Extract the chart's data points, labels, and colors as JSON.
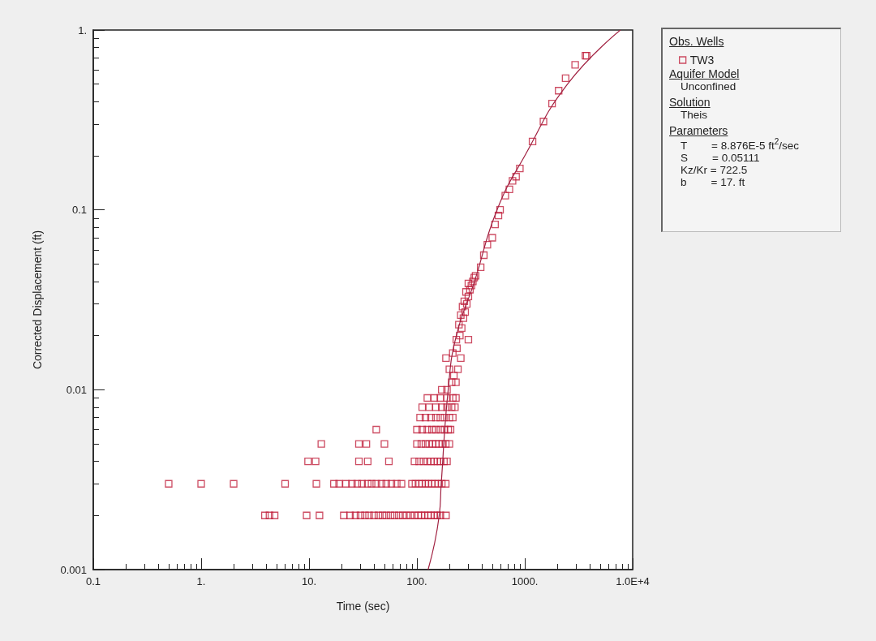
{
  "chart_data": {
    "type": "scatter",
    "xlabel": "Time (sec)",
    "ylabel": "Corrected Displacement (ft)",
    "legend_title": "Obs. Wells",
    "legend": "right",
    "log": "xy",
    "grid": false,
    "marker": "square",
    "xlim": [
      0.1,
      10000
    ],
    "ylim": [
      0.001,
      1
    ],
    "xticks": [
      0.1,
      {
        "value": 1,
        "label": "1."
      },
      {
        "value": 10,
        "label": "10."
      },
      {
        "value": 100,
        "label": "100."
      },
      {
        "value": 1000,
        "label": "1000."
      },
      {
        "value": 10000,
        "label": "1.0E+4"
      }
    ],
    "yticks": [
      0.001,
      0.01,
      0.1,
      {
        "value": 1,
        "label": "1."
      }
    ],
    "annotations": [
      "Aquifer Model",
      "Unconfined",
      "Solution",
      "Theis",
      "Parameters",
      "T        = 8.876E-5 ft$^{2}$/sec",
      "S        = 0.05111",
      "Kz/Kr = 722.5",
      "b        = 17. ft"
    ],
    "series": [
      {
        "name": "TW3",
        "color": "#c0203c",
        "x": [
          3.9,
          4.3,
          4.8,
          9.5,
          12.5,
          21,
          24,
          27,
          30,
          33,
          36,
          40,
          44,
          48,
          52,
          57,
          62,
          68,
          74,
          80,
          87,
          95,
          103,
          110,
          118,
          127,
          135,
          145,
          155,
          165,
          186,
          0.5,
          1,
          2,
          6,
          11.7,
          17,
          19,
          22,
          25,
          28,
          31,
          35,
          38,
          42,
          47,
          52,
          58,
          65,
          72,
          90,
          97,
          105,
          112,
          120,
          128,
          137,
          147,
          158,
          170,
          185,
          9.8,
          11.5,
          29,
          35,
          55,
          95,
          105,
          115,
          125,
          135,
          145,
          155,
          165,
          178,
          190,
          13,
          29,
          34,
          50,
          100,
          110,
          120,
          130,
          140,
          150,
          160,
          172,
          185,
          200,
          42,
          100,
          112,
          125,
          138,
          150,
          165,
          180,
          195,
          205,
          107,
          120,
          135,
          150,
          165,
          180,
          200,
          215,
          112,
          130,
          150,
          170,
          190,
          210,
          225,
          125,
          145,
          165,
          190,
          215,
          230,
          170,
          190,
          210,
          230,
          186,
          200,
          220,
          240,
          255,
          215,
          235,
          232,
          250,
          300,
          260,
          245,
          270,
          255,
          280,
          265,
          290,
          275,
          300,
          285,
          310,
          320,
          300,
          330,
          340,
          350,
          390,
          417,
          450,
          500,
          530,
          570,
          590,
          660,
          720,
          770,
          830,
          900,
          1180,
          1490,
          1790,
          2060,
          2390,
          2930,
          3650,
          3750
        ],
        "values": [
          0.002,
          0.002,
          0.002,
          0.002,
          0.002,
          0.002,
          0.002,
          0.002,
          0.002,
          0.002,
          0.002,
          0.002,
          0.002,
          0.002,
          0.002,
          0.002,
          0.002,
          0.002,
          0.002,
          0.002,
          0.002,
          0.002,
          0.002,
          0.002,
          0.002,
          0.002,
          0.002,
          0.002,
          0.002,
          0.002,
          0.002,
          0.003,
          0.003,
          0.003,
          0.003,
          0.003,
          0.003,
          0.003,
          0.003,
          0.003,
          0.003,
          0.003,
          0.003,
          0.003,
          0.003,
          0.003,
          0.003,
          0.003,
          0.003,
          0.003,
          0.003,
          0.003,
          0.003,
          0.003,
          0.003,
          0.003,
          0.003,
          0.003,
          0.003,
          0.003,
          0.003,
          0.004,
          0.004,
          0.004,
          0.004,
          0.004,
          0.004,
          0.004,
          0.004,
          0.004,
          0.004,
          0.004,
          0.004,
          0.004,
          0.004,
          0.004,
          0.005,
          0.005,
          0.005,
          0.005,
          0.005,
          0.005,
          0.005,
          0.005,
          0.005,
          0.005,
          0.005,
          0.005,
          0.005,
          0.005,
          0.006,
          0.006,
          0.006,
          0.006,
          0.006,
          0.006,
          0.006,
          0.006,
          0.006,
          0.006,
          0.007,
          0.007,
          0.007,
          0.007,
          0.007,
          0.007,
          0.007,
          0.007,
          0.008,
          0.008,
          0.008,
          0.008,
          0.008,
          0.008,
          0.008,
          0.009,
          0.009,
          0.009,
          0.009,
          0.009,
          0.009,
          0.01,
          0.01,
          0.011,
          0.011,
          0.015,
          0.013,
          0.012,
          0.013,
          0.015,
          0.016,
          0.017,
          0.019,
          0.02,
          0.019,
          0.022,
          0.023,
          0.025,
          0.026,
          0.027,
          0.029,
          0.03,
          0.031,
          0.033,
          0.035,
          0.036,
          0.038,
          0.039,
          0.04,
          0.042,
          0.043,
          0.048,
          0.056,
          0.064,
          0.07,
          0.083,
          0.093,
          0.1,
          0.12,
          0.13,
          0.145,
          0.153,
          0.17,
          0.24,
          0.31,
          0.39,
          0.46,
          0.54,
          0.64,
          0.72,
          0.72
        ]
      },
      {
        "type": "line",
        "color": "#a02040",
        "marker": "none",
        "line_style": "solid",
        "x": [
          127,
          161,
          168,
          195,
          232,
          342,
          553,
          1000,
          2490,
          7700
        ],
        "values": [
          0.001,
          0.002,
          0.003,
          0.01,
          0.02,
          0.04,
          0.1,
          0.2,
          0.5,
          1
        ]
      }
    ]
  }
}
